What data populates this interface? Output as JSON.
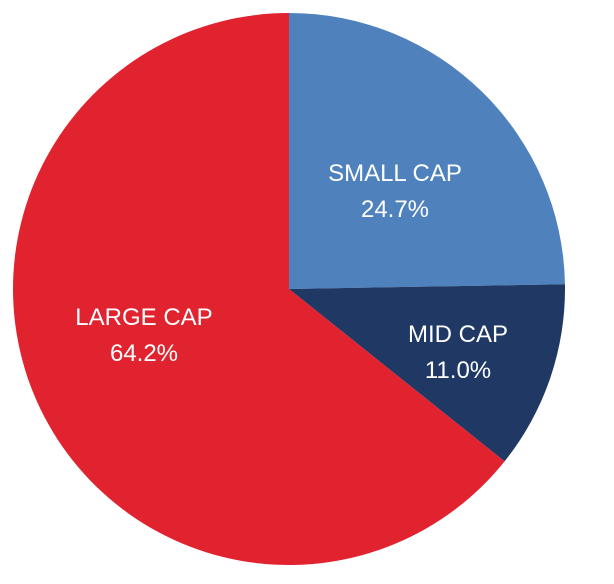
{
  "chart_data": {
    "type": "pie",
    "title": "",
    "start_angle_deg": 0,
    "direction": "clockwise",
    "slices": [
      {
        "label": "SMALL CAP",
        "value": 24.7,
        "value_label": "24.7%",
        "color": "#4f81bd"
      },
      {
        "label": "MID CAP",
        "value": 11.0,
        "value_label": "11.0%",
        "color": "#1f3864"
      },
      {
        "label": "LARGE CAP",
        "value": 64.2,
        "value_label": "64.2%",
        "color": "#e1222f"
      }
    ]
  }
}
